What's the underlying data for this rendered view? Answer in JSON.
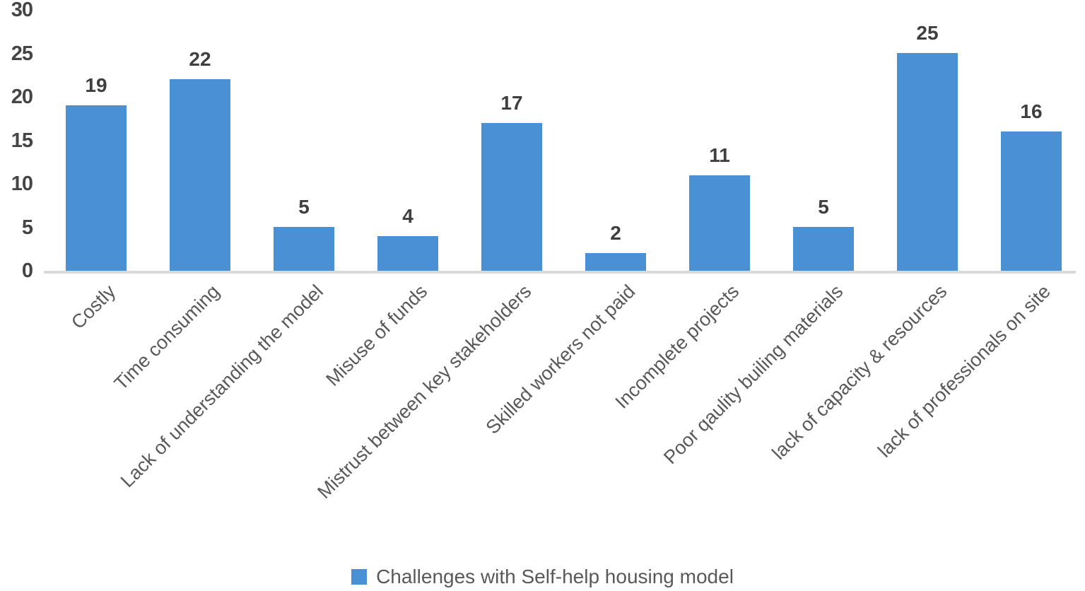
{
  "chart_data": {
    "type": "bar",
    "title": "",
    "xlabel": "",
    "ylabel": "",
    "categories": [
      "Costly",
      "Time consuming",
      "Lack of understanding the model",
      "Misuse of funds",
      "Mistrust between key stakeholders",
      "Skilled workers not paid",
      "Incomplete projects",
      "Poor qaulity builing materials",
      "lack of capacity & resources",
      "lack of professionals on site"
    ],
    "values": [
      19,
      22,
      5,
      4,
      17,
      2,
      11,
      5,
      25,
      16
    ],
    "ylim": [
      0,
      30
    ],
    "y_ticks": [
      0,
      5,
      10,
      15,
      20,
      25,
      30
    ],
    "grid": false,
    "legend": {
      "label": "Challenges with Self-help housing model",
      "position": "bottom"
    },
    "colors": {
      "bar": "#4A90D5",
      "axis_line": "#D9D9D9",
      "value_label": "#3F3F3F",
      "y_tick_label": "#454545",
      "category_label": "#595959",
      "legend_text": "#595959"
    }
  }
}
